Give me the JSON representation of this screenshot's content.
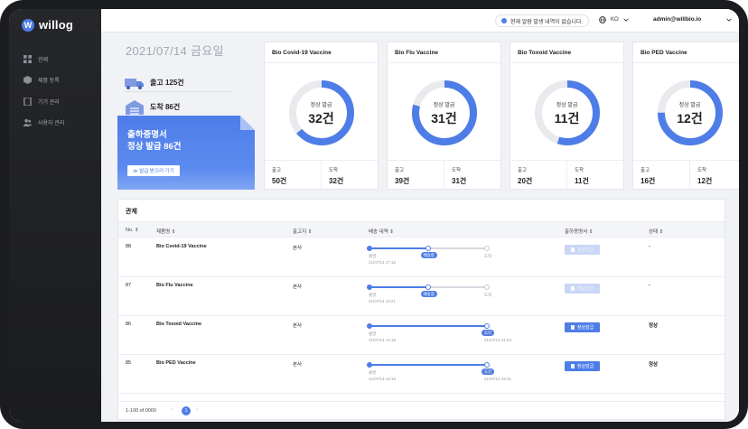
{
  "app": {
    "logo_letter": "W",
    "name": "willog"
  },
  "sidebar": {
    "items": [
      {
        "label": "관제",
        "icon": "grid-icon"
      },
      {
        "label": "제품 등록",
        "icon": "box-icon"
      },
      {
        "label": "기기 관리",
        "icon": "device-icon"
      },
      {
        "label": "사용자 관리",
        "icon": "users-icon"
      }
    ]
  },
  "topbar": {
    "notice": "현재 알람 발생 내역이 없습니다.",
    "lang": "KO",
    "user": "admin@willbio.io"
  },
  "summary": {
    "date": "2021/07/14 금요일",
    "shipped": "출고 125건",
    "arrived": "도착 86건"
  },
  "promo": {
    "line1": "출하증명서",
    "line2": "정상 발급 86건",
    "button": "≫ 발급 받으러 가기"
  },
  "cards": [
    {
      "name": "Bio Covid-19 Vaccine",
      "label": "정상 발급",
      "value": "32건",
      "ratio": 0.64,
      "out_label": "출고",
      "out": "50건",
      "in_label": "도착",
      "in": "32건"
    },
    {
      "name": "Bio Flu Vaccine",
      "label": "정상 발급",
      "value": "31건",
      "ratio": 0.79,
      "out_label": "출고",
      "out": "39건",
      "in_label": "도착",
      "in": "31건"
    },
    {
      "name": "Bio Toxoid Vaccine",
      "label": "정상 발급",
      "value": "11건",
      "ratio": 0.55,
      "out_label": "출고",
      "out": "20건",
      "in_label": "도착",
      "in": "11건"
    },
    {
      "name": "Bio PED Vaccine",
      "label": "정상 발급",
      "value": "12건",
      "ratio": 0.75,
      "out_label": "출고",
      "out": "16건",
      "in_label": "도착",
      "in": "12건"
    }
  ],
  "table": {
    "title": "관제",
    "headers": [
      "No. ⇕",
      "제품명 ⇕",
      "출고지 ⇕",
      "배송 내역 ⇕",
      "출하증명서 ⇕",
      "상태 ⇕"
    ],
    "rows": [
      {
        "no": "88",
        "product": "Bio Covid-19 Vaccine",
        "origin": "본사",
        "progress": 0.5,
        "badge": "배송중",
        "start": "출발",
        "start_time": "21/07/14 17:12",
        "end": "도착",
        "end_time": "",
        "cert": "정상발급",
        "cert_enabled": false,
        "status": "-"
      },
      {
        "no": "87",
        "product": "Bio Flu Vaccine",
        "origin": "본사",
        "progress": 0.5,
        "badge": "배송중",
        "start": "출발",
        "start_time": "21/07/14 13:21",
        "end": "도착",
        "end_time": "",
        "cert": "정상발급",
        "cert_enabled": false,
        "status": "-"
      },
      {
        "no": "86",
        "product": "Bio Toxoid Vaccine",
        "origin": "본사",
        "progress": 1,
        "badge": "도착",
        "start": "출발",
        "start_time": "21/07/14 14:16",
        "end": "도착",
        "end_time": "21/07/14 21:04",
        "cert": "정상발급",
        "cert_enabled": true,
        "status": "정상"
      },
      {
        "no": "85",
        "product": "Bio PED Vaccine",
        "origin": "본사",
        "progress": 1,
        "badge": "도착",
        "start": "출발",
        "start_time": "21/07/14 12:16",
        "end": "도착",
        "end_time": "21/07/14 22:41",
        "cert": "정상발급",
        "cert_enabled": true,
        "status": "정상"
      }
    ]
  },
  "pagination": {
    "info": "1-100 of 0000",
    "prev": "‹",
    "page": "1",
    "next": "›"
  },
  "colors": {
    "accent": "#4e7de8",
    "ring_bg": "#e9eaee",
    "sidebar": "#222327"
  }
}
